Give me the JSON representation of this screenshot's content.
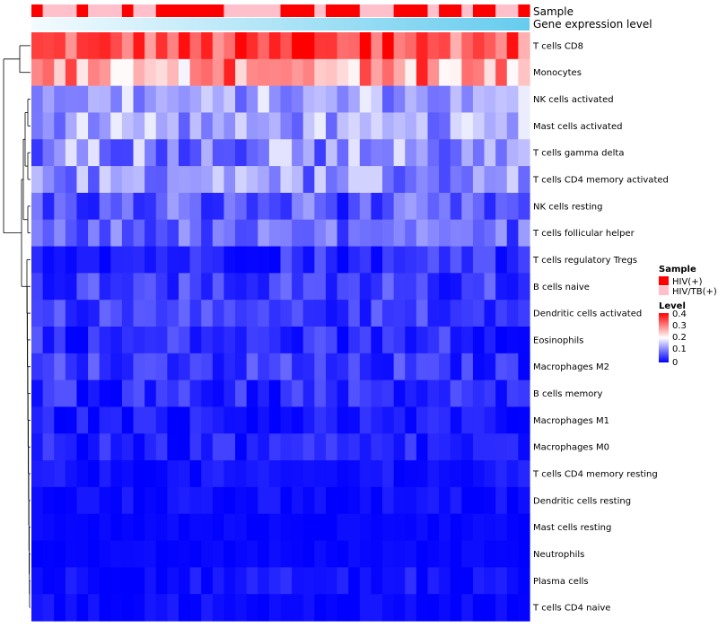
{
  "chart_data": {
    "type": "heatmap",
    "title": "",
    "rows": [
      "T cells CD8",
      "Monocytes",
      "NK cells activated",
      "Mast cells activated",
      "T cells gamma delta",
      "T cells CD4 memory activated",
      "NK cells resting",
      "T cells follicular helper",
      "T cells regulatory  Tregs",
      "B cells naive",
      "Dendritic cells activated",
      "Eosinophils",
      "Macrophages M2",
      "B cells memory",
      "Macrophages M1",
      "Macrophages M0",
      "T cells CD4 memory resting",
      "Dendritic cells resting",
      "Mast cells resting",
      "Neutrophils",
      "Plasma cells",
      "T cells CD4 naive"
    ],
    "n_columns": 44,
    "sample_annotation_label": "Sample",
    "expression_annotation_label": "Gene expression level",
    "sample_groups": [
      "1",
      "2",
      "2",
      "2",
      "1",
      "2",
      "2",
      "2",
      "1",
      "2",
      "2",
      "1",
      "1",
      "1",
      "1",
      "1",
      "1",
      "2",
      "2",
      "2",
      "2",
      "2",
      "1",
      "1",
      "1",
      "2",
      "1",
      "1",
      "1",
      "2",
      "2",
      "2",
      "1",
      "1",
      "1",
      "2",
      "1",
      "1",
      "2",
      "1",
      "1",
      "2",
      "2",
      "1"
    ],
    "sample_legend": {
      "title": "Sample",
      "items": [
        {
          "key": "1",
          "label": "HIV(+)",
          "color": "#ff0000"
        },
        {
          "key": "2",
          "label": "HIV/TB(+)",
          "color": "#ffc0cb"
        }
      ]
    },
    "level_legend": {
      "title": "Level",
      "ticks": [
        "0.4",
        "0.3",
        "0.2",
        "0.1",
        "0"
      ],
      "range": [
        0,
        0.4
      ]
    },
    "color_scale": {
      "low": "#0000ff",
      "mid": "#ffffff",
      "high": "#ff0000"
    },
    "expression_bar_color": "#66ccee",
    "row_means": [
      0.33,
      0.27,
      0.12,
      0.12,
      0.1,
      0.1,
      0.06,
      0.07,
      0.03,
      0.04,
      0.04,
      0.03,
      0.035,
      0.025,
      0.015,
      0.02,
      0.01,
      0.008,
      0.003,
      0.003,
      0.012,
      0.006
    ],
    "row_spreads": [
      0.07,
      0.08,
      0.05,
      0.05,
      0.06,
      0.05,
      0.05,
      0.04,
      0.03,
      0.035,
      0.03,
      0.03,
      0.035,
      0.03,
      0.02,
      0.025,
      0.015,
      0.012,
      0.006,
      0.006,
      0.02,
      0.012
    ]
  }
}
